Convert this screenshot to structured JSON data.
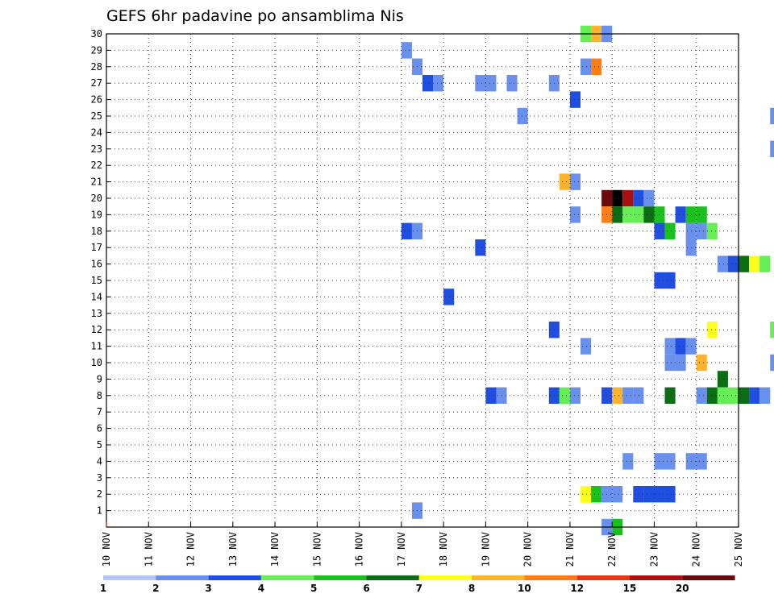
{
  "chart_data": {
    "type": "heatmap",
    "title": "GEFS 6hr padavine po ansamblima Nis",
    "xlabel": "",
    "ylabel": "",
    "x_tick_labels": [
      "10 NOV",
      "11 NOV",
      "12 NOV",
      "13 NOV",
      "14 NOV",
      "15 NOV",
      "16 NOV",
      "17 NOV",
      "18 NOV",
      "19 NOV",
      "20 NOV",
      "21 NOV",
      "22 NOV",
      "23 NOV",
      "24 NOV",
      "25 NOV"
    ],
    "y_tick_labels": [
      "1",
      "2",
      "3",
      "4",
      "5",
      "6",
      "7",
      "8",
      "9",
      "10",
      "11",
      "12",
      "13",
      "14",
      "15",
      "16",
      "17",
      "18",
      "19",
      "20",
      "21",
      "22",
      "23",
      "24",
      "25",
      "26",
      "27",
      "28",
      "29",
      "30"
    ],
    "y_range": [
      0,
      30
    ],
    "x_range_days": [
      0,
      15
    ],
    "steps_per_day": 4,
    "grid": "dotted",
    "colorbar": {
      "labels": [
        "1",
        "2",
        "3",
        "4",
        "5",
        "6",
        "7",
        "8",
        "10",
        "12",
        "15",
        "20"
      ],
      "colors": [
        "#b4c7f7",
        "#6890ec",
        "#1f4ee0",
        "#66ee55",
        "#19c21a",
        "#0b6e15",
        "#ffff1e",
        "#ffb32d",
        "#ff7d13",
        "#e03a14",
        "#a81110",
        "#6a0a0d"
      ]
    },
    "cells": [
      [
        45,
        30,
        3
      ],
      [
        46,
        30,
        7
      ],
      [
        47,
        30,
        1
      ],
      [
        28,
        29,
        1
      ],
      [
        29,
        28,
        1
      ],
      [
        45,
        28,
        1
      ],
      [
        46,
        28,
        8
      ],
      [
        30,
        27,
        2
      ],
      [
        31,
        27,
        1
      ],
      [
        35,
        27,
        1
      ],
      [
        36,
        27,
        1
      ],
      [
        38,
        27,
        1
      ],
      [
        42,
        27,
        1
      ],
      [
        44,
        26,
        2
      ],
      [
        39,
        25,
        1
      ],
      [
        63,
        25,
        1
      ],
      [
        64,
        25,
        3
      ],
      [
        65,
        25,
        2
      ],
      [
        66,
        25,
        1
      ],
      [
        67,
        25,
        1
      ],
      [
        67,
        24,
        2
      ],
      [
        63,
        23,
        1
      ],
      [
        68,
        23,
        5
      ],
      [
        68,
        22,
        5
      ],
      [
        43,
        21,
        7
      ],
      [
        44,
        21,
        1
      ],
      [
        47,
        20,
        11
      ],
      [
        48,
        20,
        12
      ],
      [
        49,
        20,
        10
      ],
      [
        50,
        20,
        2
      ],
      [
        51,
        20,
        1
      ],
      [
        44,
        19,
        1
      ],
      [
        47,
        19,
        8
      ],
      [
        48,
        19,
        5
      ],
      [
        49,
        19,
        3
      ],
      [
        50,
        19,
        3
      ],
      [
        51,
        19,
        5
      ],
      [
        52,
        19,
        4
      ],
      [
        54,
        19,
        2
      ],
      [
        55,
        19,
        4
      ],
      [
        56,
        19,
        4
      ],
      [
        28,
        18,
        2
      ],
      [
        29,
        18,
        1
      ],
      [
        52,
        18,
        2
      ],
      [
        53,
        18,
        4
      ],
      [
        55,
        18,
        1
      ],
      [
        56,
        18,
        1
      ],
      [
        57,
        18,
        3
      ],
      [
        68,
        18,
        6
      ],
      [
        35,
        17,
        2
      ],
      [
        55,
        17,
        1
      ],
      [
        58,
        16,
        1
      ],
      [
        59,
        16,
        2
      ],
      [
        60,
        16,
        5
      ],
      [
        61,
        16,
        6
      ],
      [
        62,
        16,
        3
      ],
      [
        66,
        16,
        3
      ],
      [
        52,
        15,
        2
      ],
      [
        53,
        15,
        2
      ],
      [
        32,
        14,
        2
      ],
      [
        42,
        12,
        2
      ],
      [
        57,
        12,
        6
      ],
      [
        63,
        12,
        3
      ],
      [
        45,
        11,
        1
      ],
      [
        53,
        11,
        1
      ],
      [
        54,
        11,
        2
      ],
      [
        55,
        11,
        1
      ],
      [
        53,
        10,
        1
      ],
      [
        54,
        10,
        1
      ],
      [
        56,
        10,
        7
      ],
      [
        63,
        10,
        1
      ],
      [
        66,
        10,
        5
      ],
      [
        67,
        10,
        1
      ],
      [
        58,
        9,
        5
      ],
      [
        64,
        9,
        4
      ],
      [
        65,
        9,
        1
      ],
      [
        66,
        9,
        1
      ],
      [
        36,
        8,
        2
      ],
      [
        37,
        8,
        1
      ],
      [
        42,
        8,
        2
      ],
      [
        43,
        8,
        3
      ],
      [
        44,
        8,
        1
      ],
      [
        47,
        8,
        2
      ],
      [
        48,
        8,
        7
      ],
      [
        49,
        8,
        1
      ],
      [
        50,
        8,
        1
      ],
      [
        53,
        8,
        5
      ],
      [
        56,
        8,
        1
      ],
      [
        57,
        8,
        5
      ],
      [
        58,
        8,
        3
      ],
      [
        59,
        8,
        3
      ],
      [
        60,
        8,
        5
      ],
      [
        61,
        8,
        2
      ],
      [
        62,
        8,
        1
      ],
      [
        64,
        8,
        1
      ],
      [
        49,
        4,
        1
      ],
      [
        52,
        4,
        1
      ],
      [
        53,
        4,
        1
      ],
      [
        55,
        4,
        1
      ],
      [
        56,
        4,
        1
      ],
      [
        67,
        4,
        1
      ],
      [
        45,
        2,
        6
      ],
      [
        46,
        2,
        4
      ],
      [
        47,
        2,
        1
      ],
      [
        48,
        2,
        1
      ],
      [
        50,
        2,
        2
      ],
      [
        51,
        2,
        2
      ],
      [
        52,
        2,
        2
      ],
      [
        53,
        2,
        2
      ],
      [
        29,
        1,
        1
      ],
      [
        47,
        0,
        1
      ],
      [
        48,
        0,
        4
      ]
    ]
  }
}
